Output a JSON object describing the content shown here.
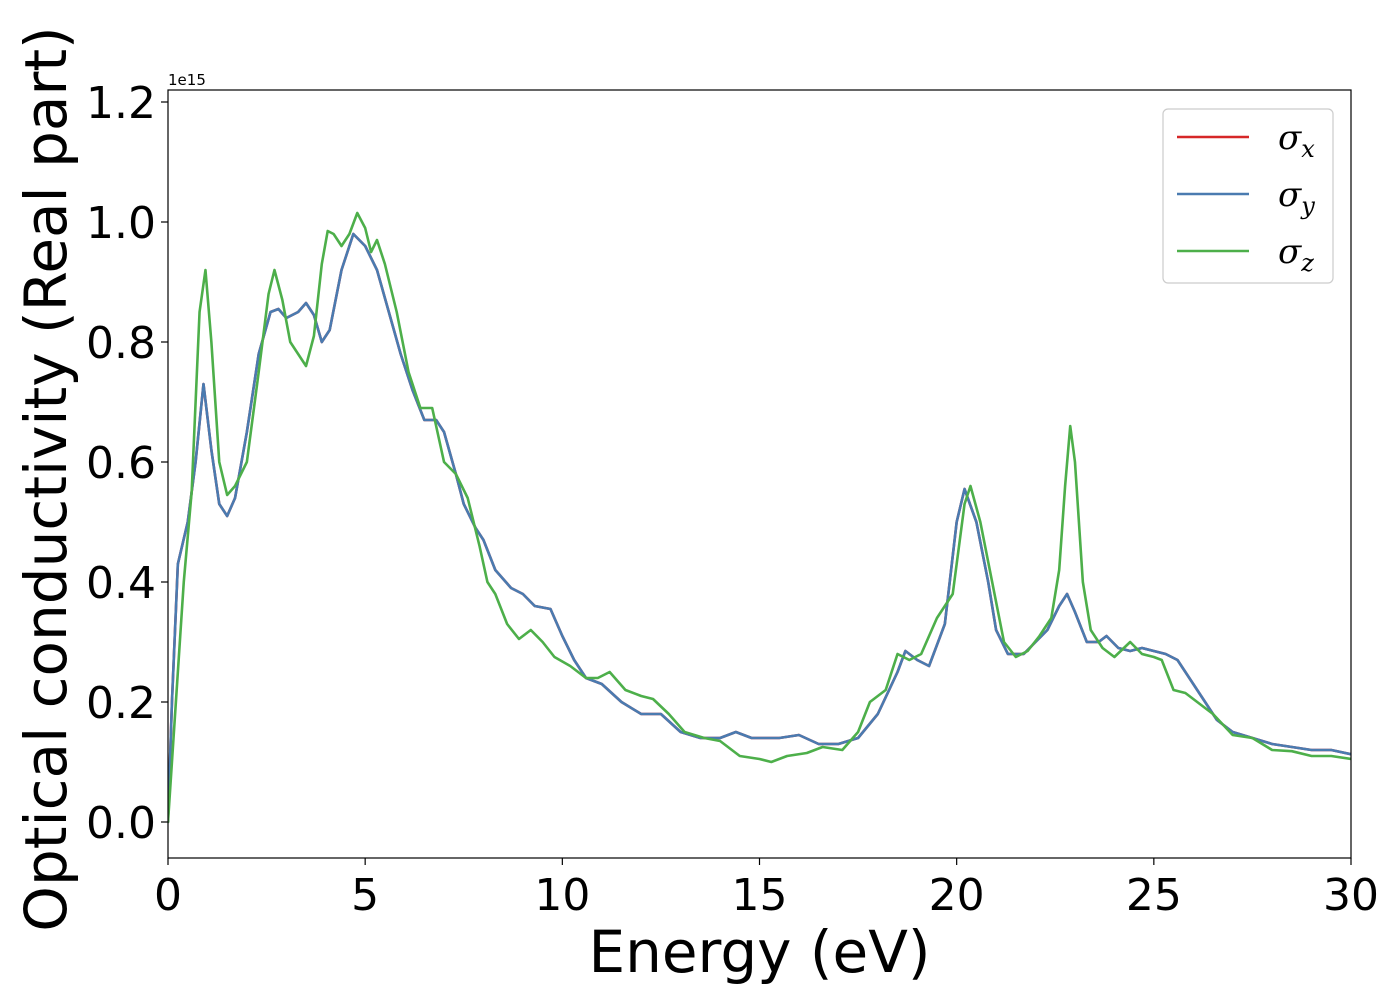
{
  "chart_data": {
    "type": "line",
    "xlabel": "Energy (eV)",
    "ylabel": "Optical conductivity (Real part)",
    "y_offset_label": "1e15",
    "y_multiplier": 1000000000000000.0,
    "xlim": [
      0,
      30
    ],
    "ylim": [
      -0.06,
      1.22
    ],
    "x_ticks": [
      0,
      5,
      10,
      15,
      20,
      25,
      30
    ],
    "x_tick_labels": [
      "0",
      "5",
      "10",
      "15",
      "20",
      "25",
      "30"
    ],
    "y_ticks": [
      0.0,
      0.2,
      0.4,
      0.6,
      0.8,
      1.0,
      1.2
    ],
    "y_tick_labels": [
      "0.0",
      "0.2",
      "0.4",
      "0.6",
      "0.8",
      "1.0",
      "1.2"
    ],
    "grid": false,
    "legend_position": "top-right",
    "series": [
      {
        "name": "σx",
        "label_base": "σ",
        "label_sub": "x",
        "color": "#d62728",
        "points": [
          [
            0,
            0
          ],
          [
            0.1,
            0.2
          ],
          [
            0.25,
            0.43
          ],
          [
            0.5,
            0.5
          ],
          [
            0.7,
            0.6
          ],
          [
            0.9,
            0.73
          ],
          [
            1.1,
            0.62
          ],
          [
            1.3,
            0.53
          ],
          [
            1.5,
            0.51
          ],
          [
            1.7,
            0.54
          ],
          [
            2.0,
            0.65
          ],
          [
            2.3,
            0.78
          ],
          [
            2.6,
            0.85
          ],
          [
            2.8,
            0.855
          ],
          [
            3.0,
            0.84
          ],
          [
            3.3,
            0.85
          ],
          [
            3.5,
            0.865
          ],
          [
            3.7,
            0.845
          ],
          [
            3.9,
            0.8
          ],
          [
            4.1,
            0.82
          ],
          [
            4.4,
            0.92
          ],
          [
            4.7,
            0.98
          ],
          [
            5.0,
            0.96
          ],
          [
            5.3,
            0.92
          ],
          [
            5.6,
            0.85
          ],
          [
            5.9,
            0.78
          ],
          [
            6.2,
            0.72
          ],
          [
            6.5,
            0.67
          ],
          [
            6.8,
            0.67
          ],
          [
            7.0,
            0.65
          ],
          [
            7.3,
            0.58
          ],
          [
            7.5,
            0.53
          ],
          [
            7.8,
            0.49
          ],
          [
            8.0,
            0.47
          ],
          [
            8.3,
            0.42
          ],
          [
            8.7,
            0.39
          ],
          [
            9.0,
            0.38
          ],
          [
            9.3,
            0.36
          ],
          [
            9.7,
            0.355
          ],
          [
            10.0,
            0.31
          ],
          [
            10.3,
            0.27
          ],
          [
            10.6,
            0.24
          ],
          [
            11.0,
            0.23
          ],
          [
            11.5,
            0.2
          ],
          [
            12.0,
            0.18
          ],
          [
            12.5,
            0.18
          ],
          [
            13.0,
            0.15
          ],
          [
            13.5,
            0.14
          ],
          [
            14.0,
            0.14
          ],
          [
            14.4,
            0.15
          ],
          [
            14.8,
            0.14
          ],
          [
            15.5,
            0.14
          ],
          [
            16.0,
            0.145
          ],
          [
            16.5,
            0.13
          ],
          [
            17.0,
            0.13
          ],
          [
            17.5,
            0.14
          ],
          [
            18.0,
            0.18
          ],
          [
            18.5,
            0.25
          ],
          [
            18.7,
            0.285
          ],
          [
            19.0,
            0.27
          ],
          [
            19.3,
            0.26
          ],
          [
            19.7,
            0.33
          ],
          [
            20.0,
            0.5
          ],
          [
            20.2,
            0.555
          ],
          [
            20.5,
            0.5
          ],
          [
            20.8,
            0.4
          ],
          [
            21.0,
            0.32
          ],
          [
            21.3,
            0.28
          ],
          [
            21.7,
            0.28
          ],
          [
            22.0,
            0.3
          ],
          [
            22.3,
            0.32
          ],
          [
            22.6,
            0.36
          ],
          [
            22.8,
            0.38
          ],
          [
            23.0,
            0.35
          ],
          [
            23.3,
            0.3
          ],
          [
            23.6,
            0.3
          ],
          [
            23.8,
            0.31
          ],
          [
            24.1,
            0.29
          ],
          [
            24.4,
            0.285
          ],
          [
            24.7,
            0.29
          ],
          [
            25.0,
            0.285
          ],
          [
            25.3,
            0.28
          ],
          [
            25.6,
            0.27
          ],
          [
            26.0,
            0.23
          ],
          [
            26.3,
            0.2
          ],
          [
            26.6,
            0.17
          ],
          [
            27.0,
            0.15
          ],
          [
            27.5,
            0.14
          ],
          [
            28.0,
            0.13
          ],
          [
            28.5,
            0.125
          ],
          [
            29.0,
            0.12
          ],
          [
            29.5,
            0.12
          ],
          [
            30.0,
            0.113
          ]
        ]
      },
      {
        "name": "σy",
        "label_base": "σ",
        "label_sub": "y",
        "color": "#4a7bb0",
        "points": [
          [
            0,
            0
          ],
          [
            0.1,
            0.2
          ],
          [
            0.25,
            0.43
          ],
          [
            0.5,
            0.5
          ],
          [
            0.7,
            0.6
          ],
          [
            0.9,
            0.73
          ],
          [
            1.1,
            0.62
          ],
          [
            1.3,
            0.53
          ],
          [
            1.5,
            0.51
          ],
          [
            1.7,
            0.54
          ],
          [
            2.0,
            0.65
          ],
          [
            2.3,
            0.78
          ],
          [
            2.6,
            0.85
          ],
          [
            2.8,
            0.855
          ],
          [
            3.0,
            0.84
          ],
          [
            3.3,
            0.85
          ],
          [
            3.5,
            0.865
          ],
          [
            3.7,
            0.845
          ],
          [
            3.9,
            0.8
          ],
          [
            4.1,
            0.82
          ],
          [
            4.4,
            0.92
          ],
          [
            4.7,
            0.98
          ],
          [
            5.0,
            0.96
          ],
          [
            5.3,
            0.92
          ],
          [
            5.6,
            0.85
          ],
          [
            5.9,
            0.78
          ],
          [
            6.2,
            0.72
          ],
          [
            6.5,
            0.67
          ],
          [
            6.8,
            0.67
          ],
          [
            7.0,
            0.65
          ],
          [
            7.3,
            0.58
          ],
          [
            7.5,
            0.53
          ],
          [
            7.8,
            0.49
          ],
          [
            8.0,
            0.47
          ],
          [
            8.3,
            0.42
          ],
          [
            8.7,
            0.39
          ],
          [
            9.0,
            0.38
          ],
          [
            9.3,
            0.36
          ],
          [
            9.7,
            0.355
          ],
          [
            10.0,
            0.31
          ],
          [
            10.3,
            0.27
          ],
          [
            10.6,
            0.24
          ],
          [
            11.0,
            0.23
          ],
          [
            11.5,
            0.2
          ],
          [
            12.0,
            0.18
          ],
          [
            12.5,
            0.18
          ],
          [
            13.0,
            0.15
          ],
          [
            13.5,
            0.14
          ],
          [
            14.0,
            0.14
          ],
          [
            14.4,
            0.15
          ],
          [
            14.8,
            0.14
          ],
          [
            15.5,
            0.14
          ],
          [
            16.0,
            0.145
          ],
          [
            16.5,
            0.13
          ],
          [
            17.0,
            0.13
          ],
          [
            17.5,
            0.14
          ],
          [
            18.0,
            0.18
          ],
          [
            18.5,
            0.25
          ],
          [
            18.7,
            0.285
          ],
          [
            19.0,
            0.27
          ],
          [
            19.3,
            0.26
          ],
          [
            19.7,
            0.33
          ],
          [
            20.0,
            0.5
          ],
          [
            20.2,
            0.555
          ],
          [
            20.5,
            0.5
          ],
          [
            20.8,
            0.4
          ],
          [
            21.0,
            0.32
          ],
          [
            21.3,
            0.28
          ],
          [
            21.7,
            0.28
          ],
          [
            22.0,
            0.3
          ],
          [
            22.3,
            0.32
          ],
          [
            22.6,
            0.36
          ],
          [
            22.8,
            0.38
          ],
          [
            23.0,
            0.35
          ],
          [
            23.3,
            0.3
          ],
          [
            23.6,
            0.3
          ],
          [
            23.8,
            0.31
          ],
          [
            24.1,
            0.29
          ],
          [
            24.4,
            0.285
          ],
          [
            24.7,
            0.29
          ],
          [
            25.0,
            0.285
          ],
          [
            25.3,
            0.28
          ],
          [
            25.6,
            0.27
          ],
          [
            26.0,
            0.23
          ],
          [
            26.3,
            0.2
          ],
          [
            26.6,
            0.17
          ],
          [
            27.0,
            0.15
          ],
          [
            27.5,
            0.14
          ],
          [
            28.0,
            0.13
          ],
          [
            28.5,
            0.125
          ],
          [
            29.0,
            0.12
          ],
          [
            29.5,
            0.12
          ],
          [
            30.0,
            0.113
          ]
        ]
      },
      {
        "name": "σz",
        "label_base": "σ",
        "label_sub": "z",
        "color": "#4daf4a",
        "points": [
          [
            0,
            0
          ],
          [
            0.2,
            0.2
          ],
          [
            0.4,
            0.4
          ],
          [
            0.6,
            0.55
          ],
          [
            0.8,
            0.85
          ],
          [
            0.95,
            0.92
          ],
          [
            1.1,
            0.8
          ],
          [
            1.3,
            0.6
          ],
          [
            1.5,
            0.545
          ],
          [
            1.7,
            0.56
          ],
          [
            2.0,
            0.6
          ],
          [
            2.3,
            0.75
          ],
          [
            2.55,
            0.88
          ],
          [
            2.7,
            0.92
          ],
          [
            2.9,
            0.87
          ],
          [
            3.1,
            0.8
          ],
          [
            3.3,
            0.78
          ],
          [
            3.5,
            0.76
          ],
          [
            3.7,
            0.81
          ],
          [
            3.9,
            0.93
          ],
          [
            4.05,
            0.985
          ],
          [
            4.2,
            0.98
          ],
          [
            4.4,
            0.96
          ],
          [
            4.6,
            0.98
          ],
          [
            4.8,
            1.015
          ],
          [
            5.0,
            0.99
          ],
          [
            5.15,
            0.95
          ],
          [
            5.3,
            0.97
          ],
          [
            5.5,
            0.93
          ],
          [
            5.8,
            0.85
          ],
          [
            6.1,
            0.75
          ],
          [
            6.4,
            0.69
          ],
          [
            6.7,
            0.69
          ],
          [
            7.0,
            0.6
          ],
          [
            7.3,
            0.58
          ],
          [
            7.6,
            0.54
          ],
          [
            7.9,
            0.46
          ],
          [
            8.1,
            0.4
          ],
          [
            8.3,
            0.38
          ],
          [
            8.6,
            0.33
          ],
          [
            8.9,
            0.305
          ],
          [
            9.2,
            0.32
          ],
          [
            9.5,
            0.3
          ],
          [
            9.8,
            0.275
          ],
          [
            10.2,
            0.26
          ],
          [
            10.6,
            0.24
          ],
          [
            10.9,
            0.24
          ],
          [
            11.2,
            0.25
          ],
          [
            11.6,
            0.22
          ],
          [
            12.0,
            0.21
          ],
          [
            12.3,
            0.205
          ],
          [
            12.7,
            0.18
          ],
          [
            13.1,
            0.15
          ],
          [
            13.6,
            0.14
          ],
          [
            14.0,
            0.135
          ],
          [
            14.5,
            0.11
          ],
          [
            15.0,
            0.105
          ],
          [
            15.3,
            0.1
          ],
          [
            15.7,
            0.11
          ],
          [
            16.2,
            0.115
          ],
          [
            16.6,
            0.125
          ],
          [
            17.1,
            0.12
          ],
          [
            17.5,
            0.15
          ],
          [
            17.8,
            0.2
          ],
          [
            18.2,
            0.22
          ],
          [
            18.5,
            0.28
          ],
          [
            18.8,
            0.27
          ],
          [
            19.1,
            0.28
          ],
          [
            19.5,
            0.34
          ],
          [
            19.9,
            0.38
          ],
          [
            20.2,
            0.53
          ],
          [
            20.35,
            0.56
          ],
          [
            20.6,
            0.5
          ],
          [
            20.9,
            0.4
          ],
          [
            21.2,
            0.3
          ],
          [
            21.5,
            0.275
          ],
          [
            21.8,
            0.285
          ],
          [
            22.1,
            0.31
          ],
          [
            22.4,
            0.34
          ],
          [
            22.6,
            0.42
          ],
          [
            22.75,
            0.56
          ],
          [
            22.88,
            0.66
          ],
          [
            23.0,
            0.6
          ],
          [
            23.2,
            0.4
          ],
          [
            23.4,
            0.32
          ],
          [
            23.7,
            0.29
          ],
          [
            24.0,
            0.275
          ],
          [
            24.4,
            0.3
          ],
          [
            24.7,
            0.28
          ],
          [
            25.0,
            0.275
          ],
          [
            25.2,
            0.27
          ],
          [
            25.5,
            0.22
          ],
          [
            25.8,
            0.215
          ],
          [
            26.1,
            0.2
          ],
          [
            26.5,
            0.18
          ],
          [
            27.0,
            0.145
          ],
          [
            27.5,
            0.14
          ],
          [
            28.0,
            0.12
          ],
          [
            28.5,
            0.118
          ],
          [
            29.0,
            0.11
          ],
          [
            29.5,
            0.11
          ],
          [
            30.0,
            0.105
          ]
        ]
      }
    ]
  }
}
